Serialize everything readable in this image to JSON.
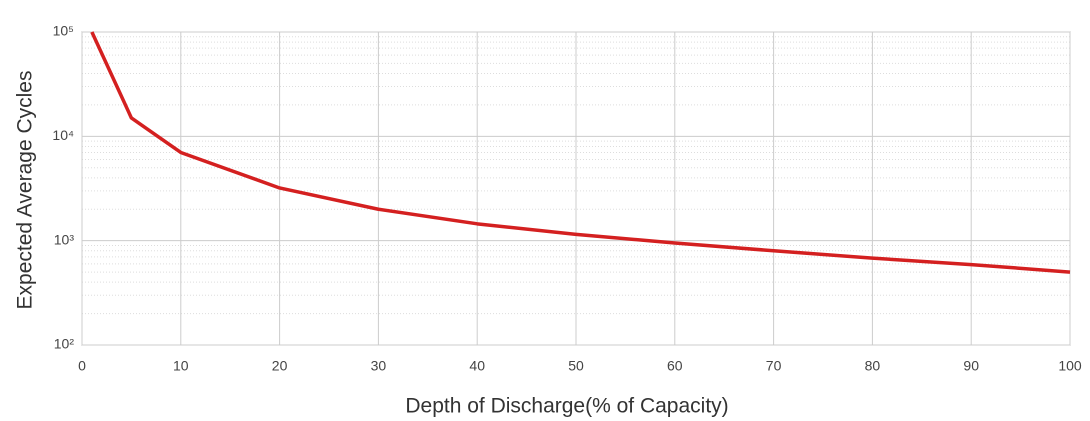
{
  "chart_data": {
    "type": "line",
    "x_label": "Depth of Discharge(% of Capacity)",
    "y_label": "Expected Average Cycles",
    "x": [
      1,
      5,
      10,
      20,
      30,
      40,
      50,
      60,
      70,
      80,
      90,
      100
    ],
    "series": [
      {
        "name": "Expected Average Cycles",
        "color": "#d42020",
        "values": [
          100000,
          15000,
          7000,
          3200,
          2000,
          1450,
          1150,
          950,
          800,
          680,
          590,
          500
        ]
      }
    ],
    "xlim": [
      0,
      100
    ],
    "xticks": [
      0,
      10,
      20,
      30,
      40,
      50,
      60,
      70,
      80,
      90,
      100
    ],
    "ylim": [
      100,
      100000
    ],
    "yticks": [
      {
        "value": 100,
        "label": "10²"
      },
      {
        "value": 1000,
        "label": "10³"
      },
      {
        "value": 10000,
        "label": "10⁴"
      },
      {
        "value": 100000,
        "label": "10⁵"
      }
    ],
    "y_log": true,
    "grid": true
  }
}
